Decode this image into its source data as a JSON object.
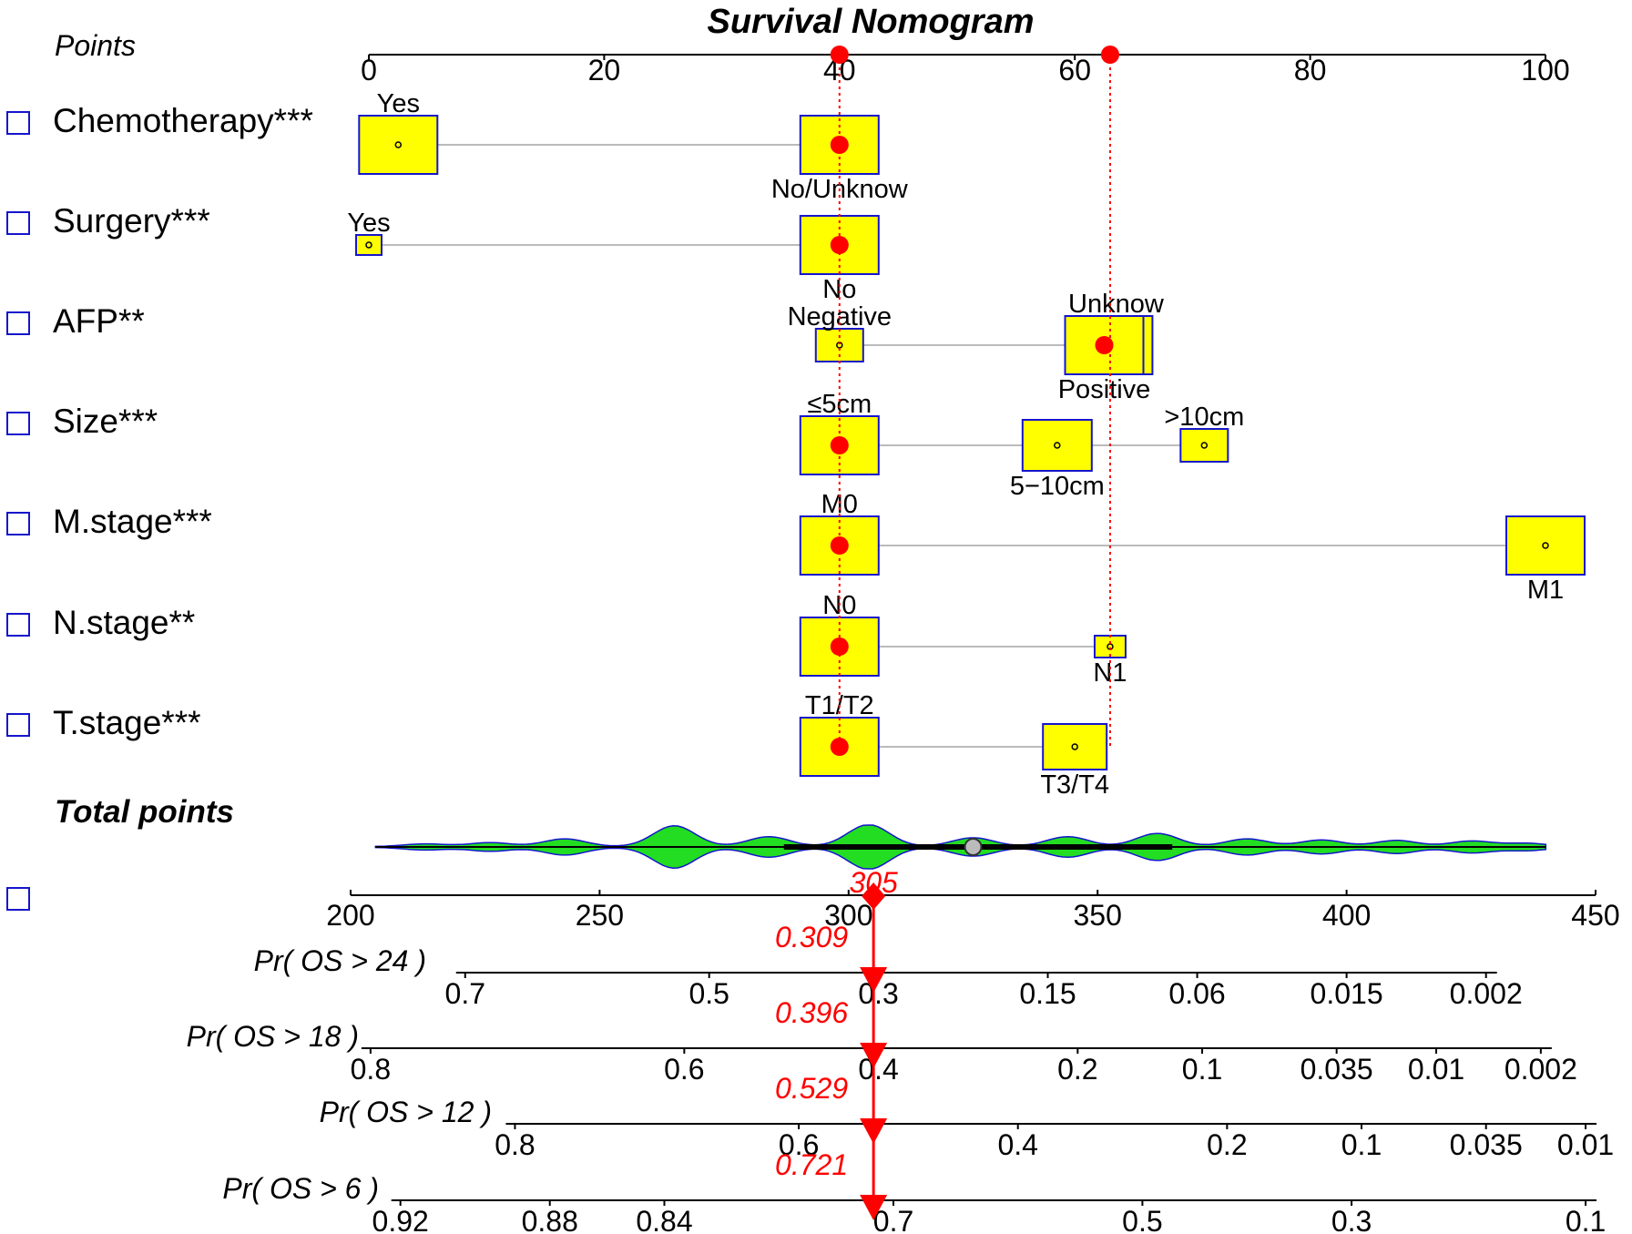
{
  "chart_data": {
    "type": "nomogram",
    "title": "Survival Nomogram",
    "points_axis": {
      "label": "Points",
      "min": 0,
      "max": 100,
      "ticks": [
        0,
        20,
        40,
        60,
        80,
        100
      ]
    },
    "selected_points": [
      40,
      63
    ],
    "variables": [
      {
        "name": "Chemotherapy***",
        "levels": [
          {
            "label": "Yes",
            "points": 2.5,
            "label_pos": "above",
            "selected": false
          },
          {
            "label": "No/Unknow",
            "points": 40,
            "label_pos": "below",
            "selected": true
          }
        ]
      },
      {
        "name": "Surgery***",
        "levels": [
          {
            "label": "Yes",
            "points": 0,
            "label_pos": "above",
            "selected": false
          },
          {
            "label": "No",
            "points": 40,
            "label_pos": "below",
            "selected": true
          }
        ]
      },
      {
        "name": "AFP**",
        "levels": [
          {
            "label": "Negative",
            "points": 40,
            "label_pos": "above",
            "selected": false
          },
          {
            "label": "Unknow",
            "points": 63.5,
            "label_pos": "above",
            "selected": false
          },
          {
            "label": "Positive",
            "points": 62.5,
            "label_pos": "below",
            "selected": true
          }
        ]
      },
      {
        "name": "Size***",
        "levels": [
          {
            "label": "≤5cm",
            "points": 40,
            "label_pos": "above",
            "selected": true
          },
          {
            "label": "5−10cm",
            "points": 58.5,
            "label_pos": "below",
            "selected": false
          },
          {
            "label": ">10cm",
            "points": 71,
            "label_pos": "above",
            "selected": false
          }
        ]
      },
      {
        "name": "M.stage***",
        "levels": [
          {
            "label": "M0",
            "points": 40,
            "label_pos": "above",
            "selected": true
          },
          {
            "label": "M1",
            "points": 100,
            "label_pos": "below",
            "selected": false
          }
        ]
      },
      {
        "name": "N.stage**",
        "levels": [
          {
            "label": "N0",
            "points": 40,
            "label_pos": "above",
            "selected": true
          },
          {
            "label": "N1",
            "points": 63,
            "label_pos": "below",
            "selected": false
          }
        ]
      },
      {
        "name": "T.stage***",
        "levels": [
          {
            "label": "T1/T2",
            "points": 40,
            "label_pos": "above",
            "selected": true
          },
          {
            "label": "T3/T4",
            "points": 60,
            "label_pos": "below",
            "selected": false
          }
        ]
      }
    ],
    "total_points": {
      "label": "Total points",
      "min": 200,
      "max": 450,
      "ticks": [
        200,
        250,
        300,
        350,
        400,
        450
      ],
      "value": 305,
      "value_label": "305",
      "median": 325,
      "iqr": [
        287,
        365
      ],
      "distribution_min": 205,
      "distribution_max": 440,
      "density_peaks": [
        {
          "x": 265,
          "w": 0.95
        },
        {
          "x": 304,
          "w": 1.0
        },
        {
          "x": 284,
          "w": 0.45
        },
        {
          "x": 243,
          "w": 0.35
        },
        {
          "x": 362,
          "w": 0.6
        },
        {
          "x": 344,
          "w": 0.45
        },
        {
          "x": 325,
          "w": 0.4
        },
        {
          "x": 380,
          "w": 0.35
        },
        {
          "x": 395,
          "w": 0.3
        },
        {
          "x": 410,
          "w": 0.28
        },
        {
          "x": 425,
          "w": 0.25
        },
        {
          "x": 228,
          "w": 0.18
        },
        {
          "x": 215,
          "w": 0.12
        },
        {
          "x": 436,
          "w": 0.15
        }
      ]
    },
    "probability_axes": [
      {
        "label": "Pr( OS > 24 )",
        "value": 0.309,
        "value_label": "0.309",
        "ticks": [
          {
            "label": "0.7",
            "tp": 223
          },
          {
            "label": "0.5",
            "tp": 272
          },
          {
            "label": "0.3",
            "tp": 306
          },
          {
            "label": "0.15",
            "tp": 340
          },
          {
            "label": "0.06",
            "tp": 370
          },
          {
            "label": "0.015",
            "tp": 400
          },
          {
            "label": "0.002",
            "tp": 428
          }
        ]
      },
      {
        "label": "Pr( OS > 18 )",
        "value": 0.396,
        "value_label": "0.396",
        "ticks": [
          {
            "label": "0.8",
            "tp": 204
          },
          {
            "label": "0.6",
            "tp": 267
          },
          {
            "label": "0.4",
            "tp": 306
          },
          {
            "label": "0.2",
            "tp": 346
          },
          {
            "label": "0.1",
            "tp": 371
          },
          {
            "label": "0.035",
            "tp": 398
          },
          {
            "label": "0.01",
            "tp": 418
          },
          {
            "label": "0.002",
            "tp": 439
          }
        ]
      },
      {
        "label": "Pr( OS > 12 )",
        "value": 0.529,
        "value_label": "0.529",
        "ticks": [
          {
            "label": "0.8",
            "tp": 233
          },
          {
            "label": "0.6",
            "tp": 290
          },
          {
            "label": "0.4",
            "tp": 334
          },
          {
            "label": "0.2",
            "tp": 376
          },
          {
            "label": "0.1",
            "tp": 403
          },
          {
            "label": "0.035",
            "tp": 428
          },
          {
            "label": "0.01",
            "tp": 448
          }
        ]
      },
      {
        "label": "Pr( OS > 6 )",
        "value": 0.721,
        "value_label": "0.721",
        "ticks": [
          {
            "label": "0.92",
            "tp": 210
          },
          {
            "label": "0.88",
            "tp": 240
          },
          {
            "label": "0.84",
            "tp": 263
          },
          {
            "label": "0.7",
            "tp": 309
          },
          {
            "label": "0.5",
            "tp": 359
          },
          {
            "label": "0.3",
            "tp": 401
          },
          {
            "label": "0.1",
            "tp": 448
          }
        ]
      }
    ]
  }
}
